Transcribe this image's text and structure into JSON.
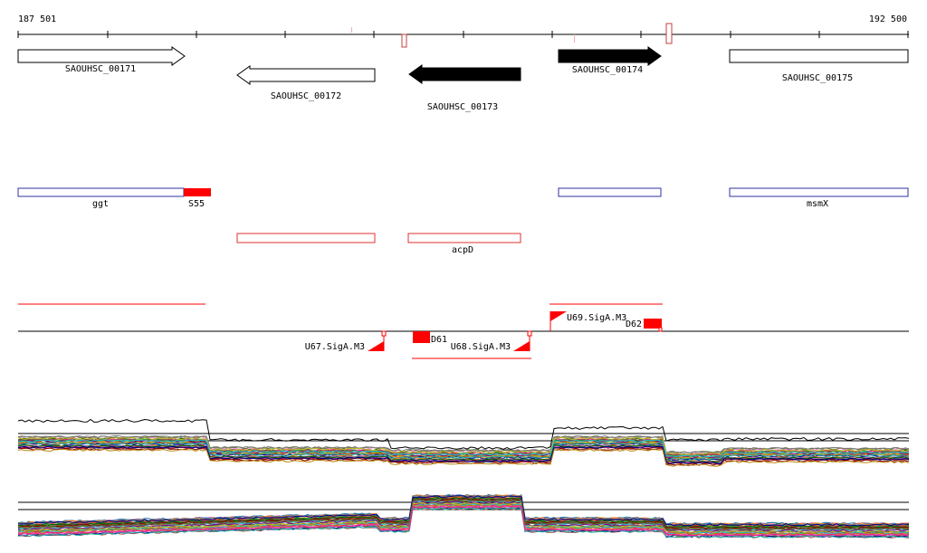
{
  "coordinates": {
    "start": "187 501",
    "end": "192 500"
  },
  "genes": [
    {
      "id": "g171",
      "label": "SAOUHSC_00171",
      "strand": "+",
      "fill": "#ffffff"
    },
    {
      "id": "g172",
      "label": "SAOUHSC_00172",
      "strand": "-",
      "fill": "#ffffff"
    },
    {
      "id": "g173",
      "label": "SAOUHSC_00173",
      "strand": "-",
      "fill": "#000000"
    },
    {
      "id": "g174",
      "label": "SAOUHSC_00174",
      "strand": "+",
      "fill": "#000000"
    },
    {
      "id": "g175",
      "label": "SAOUHSC_00175",
      "strand": "",
      "fill": "#ffffff"
    }
  ],
  "operons": [
    {
      "id": "ggt",
      "label": "ggt"
    },
    {
      "id": "s55",
      "label": "S55"
    },
    {
      "id": "msmX",
      "label": "msmX"
    },
    {
      "id": "acpD",
      "label": "acpD"
    }
  ],
  "promoters": [
    {
      "id": "u67",
      "label": "U67.SigA.M3"
    },
    {
      "id": "u68",
      "label": "U68.SigA.M3"
    },
    {
      "id": "u69",
      "label": "U69.SigA.M3"
    }
  ],
  "segments": [
    {
      "id": "d61",
      "label": "D61"
    },
    {
      "id": "d62",
      "label": "D62"
    }
  ],
  "colors": {
    "axis": "#000000",
    "operon_outline_blue": "#3030a0",
    "operon_outline_red": "#e03030",
    "feature_red": "#ff0000",
    "marker_outline": "#c04040"
  }
}
